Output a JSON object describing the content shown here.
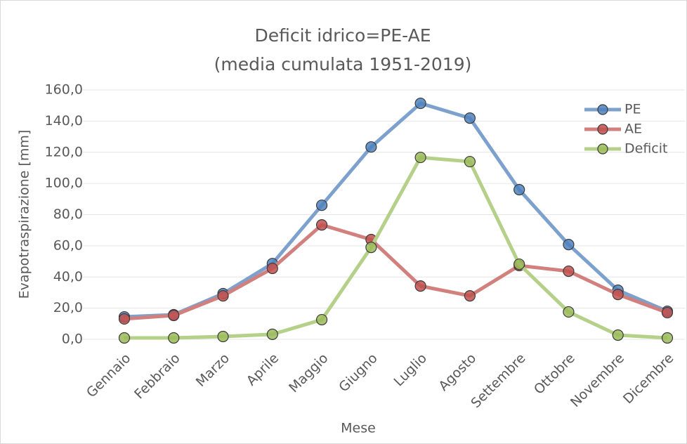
{
  "chart_data": {
    "type": "line",
    "title": "Deficit idrico=PE-AE",
    "subtitle": "(media cumulata 1951-2019)",
    "x_label": "Mese",
    "y_label": "Evapotraspirazione [mm]",
    "categories": [
      "Gennaio",
      "Febbraio",
      "Marzo",
      "Aprile",
      "Maggio",
      "Giugno",
      "Luglio",
      "Agosto",
      "Settembre",
      "Ottobre",
      "Novembre",
      "Dicembre"
    ],
    "series": [
      {
        "name": "PE",
        "color": "#7da1cd",
        "marker_color": "#4f81bd",
        "values": [
          14.4,
          15.8,
          29.3,
          48.6,
          86,
          123.4,
          151.4,
          141.9,
          96,
          60.8,
          31.5,
          18
        ]
      },
      {
        "name": "AE",
        "color": "#d1807d",
        "marker_color": "#c0504d",
        "values": [
          13.1,
          15.3,
          27.9,
          45.5,
          73.4,
          64,
          34.2,
          27.9,
          47.3,
          43.7,
          28.8,
          17.1
        ]
      },
      {
        "name": "Deficit",
        "color": "#b4d089",
        "marker_color": "#9bbb59",
        "values": [
          0.9,
          0.9,
          1.8,
          3.2,
          12.6,
          59,
          116.7,
          114,
          48.2,
          17.6,
          2.7,
          0.9
        ]
      }
    ],
    "ylim": [
      0,
      160
    ],
    "yticks": [
      {
        "value": 0,
        "label": "0,0"
      },
      {
        "value": 20,
        "label": "20,0"
      },
      {
        "value": 40,
        "label": "40,0"
      },
      {
        "value": 60,
        "label": "60,0"
      },
      {
        "value": 80,
        "label": "80,0"
      },
      {
        "value": 100,
        "label": "100,0"
      },
      {
        "value": 120,
        "label": "120,0"
      },
      {
        "value": 140,
        "label": "140,0"
      },
      {
        "value": 160,
        "label": "160,0"
      }
    ],
    "grid": true,
    "legend": "top-right"
  }
}
